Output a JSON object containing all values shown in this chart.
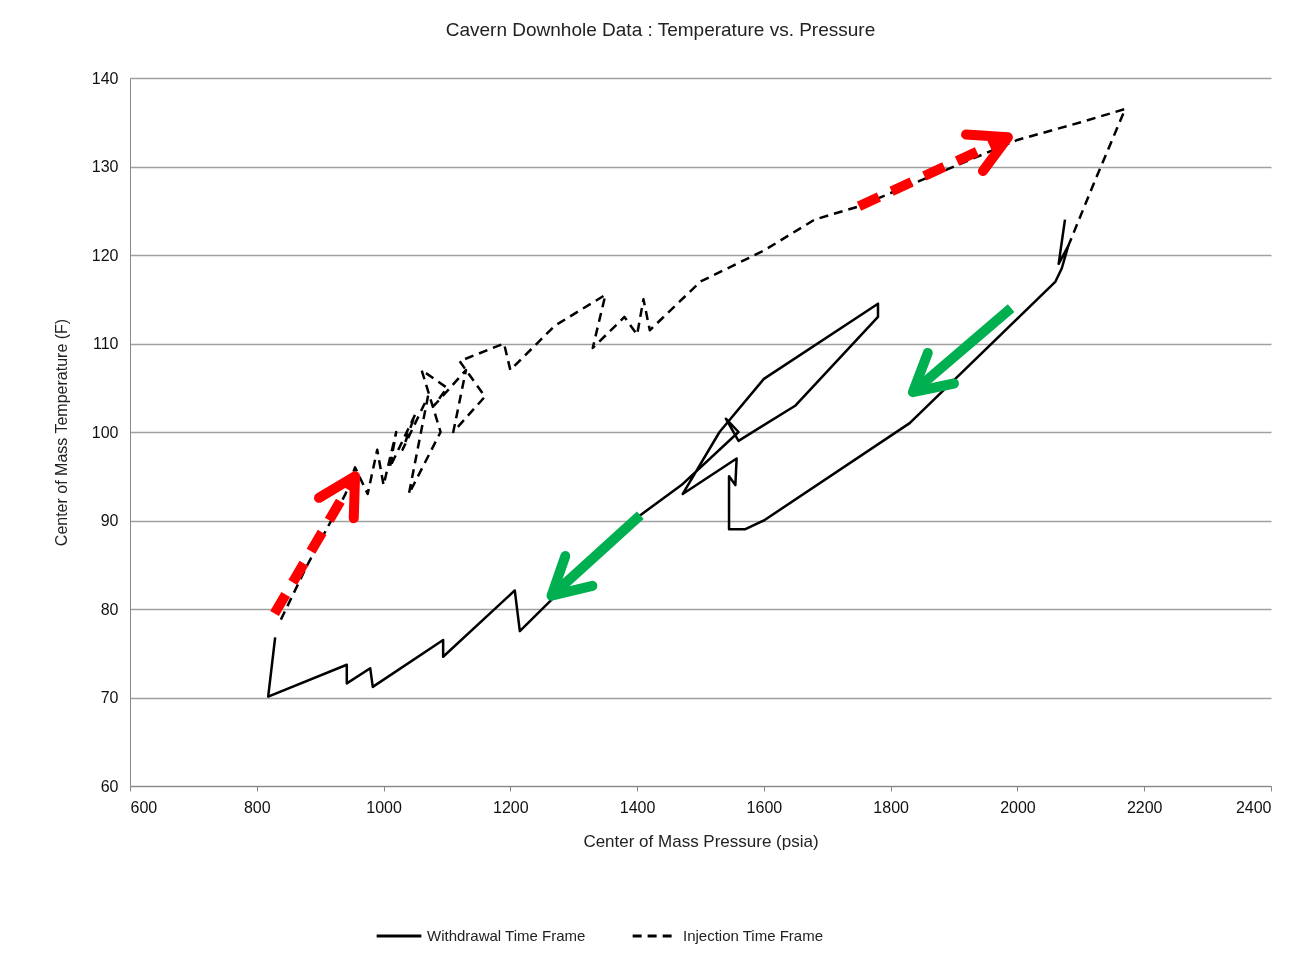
{
  "chart_data": {
    "type": "line",
    "title": "Cavern Downhole Data :  Temperature vs. Pressure",
    "xlabel": "Center of Mass Pressure (psia)",
    "ylabel": "Center of Mass Temperature (F)",
    "xlim": [
      600,
      2400
    ],
    "xticks": [
      600,
      800,
      {
        "value": 1000,
        "label": "1000"
      },
      {
        "value": 1200,
        "label": "1200"
      },
      {
        "value": 1400,
        "label": "1400"
      },
      {
        "value": 1600,
        "label": "1600"
      },
      {
        "value": 1800,
        "label": "1800"
      },
      {
        "value": 2000,
        "label": "2000"
      },
      {
        "value": 2200,
        "label": "2200"
      },
      {
        "value": 2400,
        "label": "2400"
      }
    ],
    "ylim": [
      60,
      140
    ],
    "yticks": [
      60,
      70,
      80,
      90,
      100,
      110,
      120,
      130,
      140
    ],
    "grid": "y",
    "legend": "bottom",
    "marker": "none",
    "series": [
      {
        "name": "Withdrawal Time Frame",
        "color": "#000000",
        "line_style": "solid",
        "x": [
          2075,
          2065,
          2080,
          2070,
          2060,
          1830,
          1600,
          1570,
          1545,
          1545,
          1555,
          1557,
          1472,
          1530,
          1600,
          1780,
          1780,
          1650,
          1560,
          1540,
          1560,
          1470,
          1405,
          1270,
          1215,
          1207,
          1094,
          1094,
          983,
          979,
          942,
          942,
          818,
          829
        ],
        "values": [
          124,
          119,
          121,
          118.5,
          117,
          101,
          90,
          89,
          89,
          95,
          94,
          97,
          93,
          100,
          106,
          114.5,
          113,
          103,
          99,
          101.5,
          100,
          94,
          90.6,
          81.4,
          77.5,
          82.1,
          74.6,
          76.5,
          71.2,
          73.3,
          71.6,
          73.7,
          70.1,
          76.8
        ]
      },
      {
        "name": "Injection Time Frame",
        "color": "#000000",
        "line_style": "dashed",
        "x": [
          838,
          880,
          940,
          955,
          975,
          990,
          1000,
          1020,
          1010,
          1050,
          1030,
          1070,
          1040,
          1090,
          1060,
          1100,
          1080,
          1130,
          1110,
          1160,
          1120,
          1190,
          1200,
          1270,
          1350,
          1330,
          1380,
          1400,
          1410,
          1420,
          1500,
          1600,
          1680,
          1750,
          1900,
          2000,
          2100,
          2170,
          2120,
          2080
        ],
        "values": [
          78.8,
          85,
          93,
          96,
          93,
          98,
          94,
          100,
          96,
          102,
          98,
          104,
          93,
          100,
          107,
          105,
          103,
          107,
          100,
          104,
          108,
          110,
          107,
          112,
          115.5,
          109.5,
          113,
          111,
          115,
          111.5,
          117,
          120.5,
          124,
          125.5,
          130,
          133,
          135,
          136.5,
          128,
          121
        ]
      }
    ]
  }
}
